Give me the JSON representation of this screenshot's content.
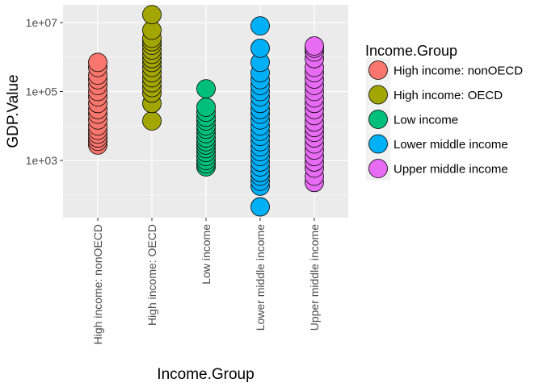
{
  "chart_data": {
    "type": "scatter",
    "xlabel": "Income.Group",
    "ylabel": "GDP.Value",
    "y_scale": "log10",
    "ylim": [
      30,
      30000000
    ],
    "y_ticks": [
      1000,
      100000,
      10000000
    ],
    "y_tick_labels": [
      "1e+03",
      "1e+05",
      "1e+07"
    ],
    "categories": [
      "High income: nonOECD",
      "High income: OECD",
      "Low income",
      "Lower middle income",
      "Upper middle income"
    ],
    "legend": {
      "title": "Income.Group",
      "position": "right",
      "entries": [
        "High income: nonOECD",
        "High income: OECD",
        "Low income",
        "Lower middle income",
        "Upper middle income"
      ]
    },
    "grid": true,
    "colors": [
      "#f8766d",
      "#a3a500",
      "#00bf7d",
      "#00b0f6",
      "#e76bf3"
    ],
    "series": [
      {
        "name": "High income: nonOECD",
        "values": [
          2800,
          3600,
          4500,
          5800,
          7500,
          10000,
          15000,
          22000,
          30000,
          45000,
          70000,
          100000,
          150000,
          220000,
          300000,
          500000,
          700000
        ]
      },
      {
        "name": "High income: OECD",
        "values": [
          14000,
          45000,
          90000,
          130000,
          180000,
          250000,
          350000,
          500000,
          700000,
          900000,
          1200000,
          1600000,
          2200000,
          2800000,
          3500000,
          6000000,
          17000000
        ]
      },
      {
        "name": "Low income",
        "values": [
          650,
          800,
          1000,
          1300,
          1700,
          2200,
          2800,
          3500,
          4500,
          6000,
          8000,
          10000,
          14000,
          18000,
          25000,
          35000,
          120000
        ]
      },
      {
        "name": "Lower middle income",
        "values": [
          45,
          180,
          250,
          350,
          450,
          650,
          900,
          1300,
          1800,
          2500,
          3500,
          5000,
          7000,
          10000,
          15000,
          22000,
          30000,
          45000,
          70000,
          100000,
          150000,
          220000,
          350000,
          700000,
          1800000,
          8000000
        ]
      },
      {
        "name": "Upper middle income",
        "values": [
          230,
          350,
          600,
          900,
          1300,
          2000,
          3000,
          4500,
          6500,
          9000,
          13000,
          20000,
          30000,
          45000,
          65000,
          100000,
          150000,
          230000,
          350000,
          500000,
          900000,
          1400000,
          1800000,
          2100000
        ]
      }
    ]
  }
}
